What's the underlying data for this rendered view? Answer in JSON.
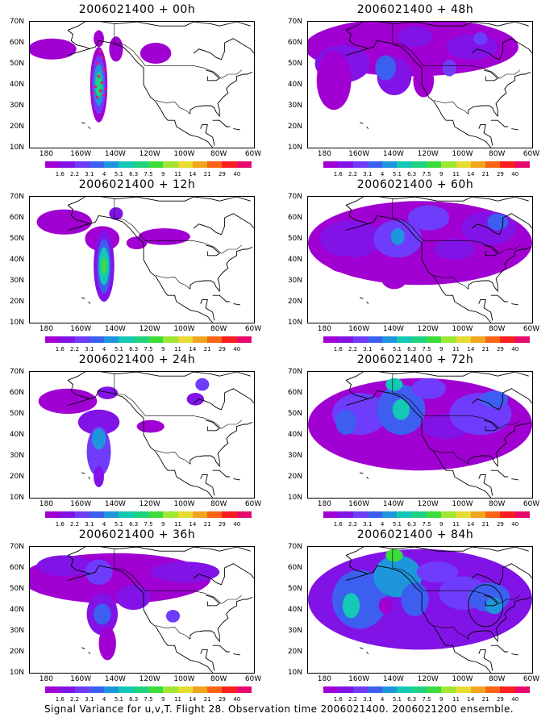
{
  "caption": "Signal Variance for u,v,T. Flight 28. Observation time 2006021400. 2006021200 ensemble.",
  "lat_labels": [
    "70N",
    "60N",
    "50N",
    "40N",
    "30N",
    "20N",
    "10N"
  ],
  "lon_labels": [
    "180",
    "160W",
    "140W",
    "120W",
    "100W",
    "80W",
    "60W"
  ],
  "colorbar": {
    "labels": [
      "1.6",
      "2.2",
      "3.1",
      "4",
      "5.1",
      "6.3",
      "7.5",
      "9",
      "11",
      "14",
      "21",
      "29",
      "40"
    ],
    "colors": [
      "#a000d2",
      "#8213e6",
      "#6e3cfa",
      "#3c5ff0",
      "#1e96dc",
      "#13c8b4",
      "#1ed282",
      "#3cdc3c",
      "#a0e632",
      "#e6dc32",
      "#f0a51e",
      "#fa6414",
      "#fa1e1e",
      "#e60a6e"
    ]
  },
  "panels": [
    {
      "title": "2006021400 + 00h",
      "lead": "00h"
    },
    {
      "title": "2006021400 + 12h",
      "lead": "12h"
    },
    {
      "title": "2006021400 + 24h",
      "lead": "24h"
    },
    {
      "title": "2006021400 + 36h",
      "lead": "36h"
    },
    {
      "title": "2006021400 + 48h",
      "lead": "48h"
    },
    {
      "title": "2006021400 + 60h",
      "lead": "60h"
    },
    {
      "title": "2006021400 + 72h",
      "lead": "72h"
    },
    {
      "title": "2006021400 + 84h",
      "lead": "84h"
    }
  ],
  "map_extent": {
    "lon": [
      -190,
      -60
    ],
    "lat": [
      10,
      70
    ]
  },
  "overlays": {
    "observation_markers_panel": "00h",
    "marker_color": "#e6187a",
    "highlight_circle_panel": "84h"
  }
}
